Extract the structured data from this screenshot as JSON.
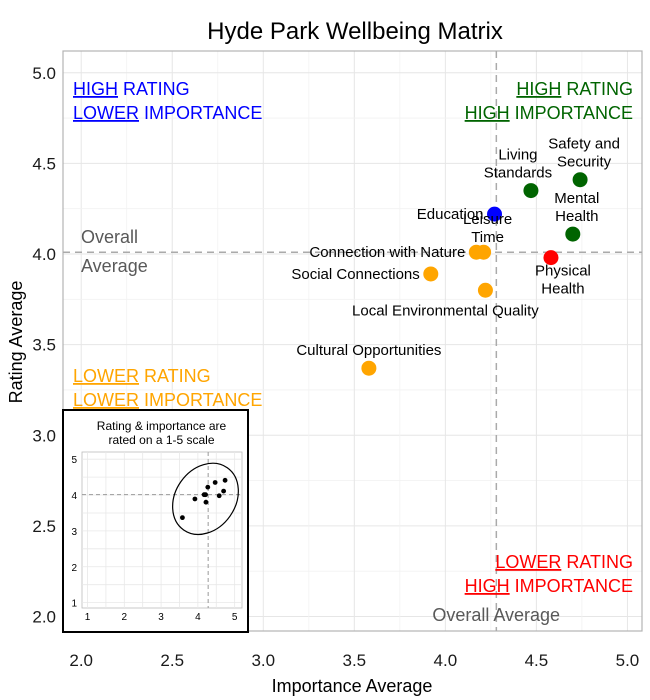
{
  "chart_data": {
    "type": "scatter",
    "title": "Hyde Park Wellbeing Matrix",
    "xlabel": "Importance Average",
    "ylabel": "Rating Average",
    "xlim": [
      1.9,
      5.08
    ],
    "ylim": [
      1.92,
      5.12
    ],
    "x_ticks": [
      "2.0",
      "2.5",
      "3.0",
      "3.5",
      "4.0",
      "4.5",
      "5.0"
    ],
    "y_ticks": [
      "2.0",
      "2.5",
      "3.0",
      "3.5",
      "4.0",
      "4.5",
      "5.0"
    ],
    "grid": true,
    "overall_average": {
      "x": 4.28,
      "y": 4.01
    },
    "overall_labels": {
      "y_line1": "Overall",
      "y_line2": "Average",
      "x_label": "Overall Average"
    },
    "colors": {
      "high_high": "#006400",
      "high_low": "#0000ff",
      "low_low": "#ffa500",
      "low_high": "#ff0000",
      "reference": "#aaaaaa",
      "overall_text": "#595959"
    },
    "quadrants": [
      {
        "id": "high_low",
        "underline": "HIGH",
        "rest1": " RATING",
        "underline2": "LOWER",
        "rest2": " IMPORTANCE",
        "color": "#0000ff"
      },
      {
        "id": "high_high",
        "underline": "HIGH",
        "rest1": " RATING",
        "underline2": "HIGH",
        "rest2": " IMPORTANCE",
        "color": "#006400"
      },
      {
        "id": "low_low",
        "underline": "LOWER",
        "rest1": " RATING",
        "underline2": "LOWER",
        "rest2": " IMPORTANCE",
        "color": "#ffa500"
      },
      {
        "id": "low_high",
        "underline": "LOWER",
        "rest1": " RATING",
        "underline2": "HIGH",
        "rest2": " IMPORTANCE",
        "color": "#ff0000"
      }
    ],
    "points": [
      {
        "name": "Safety and Security",
        "lines": [
          "Safety and",
          "Security"
        ],
        "x": 4.74,
        "y": 4.41,
        "color": "#006400",
        "align": "above-left"
      },
      {
        "name": "Living Standards",
        "lines": [
          "Living",
          "Standards"
        ],
        "x": 4.47,
        "y": 4.35,
        "color": "#006400",
        "align": "above-left"
      },
      {
        "name": "Mental Health",
        "lines": [
          "Mental",
          "Health"
        ],
        "x": 4.7,
        "y": 4.11,
        "color": "#006400",
        "align": "above-left"
      },
      {
        "name": "Education",
        "lines": [
          "Education"
        ],
        "x": 4.27,
        "y": 4.22,
        "color": "#0000ff",
        "align": "left"
      },
      {
        "name": "Leisure Time",
        "lines": [
          "Leisure",
          "Time"
        ],
        "x": 4.21,
        "y": 4.01,
        "color": "#ffa500",
        "align": "above-right"
      },
      {
        "name": "Connection with Nature",
        "lines": [
          "Connection with Nature"
        ],
        "x": 4.17,
        "y": 4.01,
        "color": "#ffa500",
        "align": "left"
      },
      {
        "name": "Physical Health",
        "lines": [
          "Physical",
          "Health"
        ],
        "x": 4.58,
        "y": 3.98,
        "color": "#ff0000",
        "align": "below-right"
      },
      {
        "name": "Social Connections",
        "lines": [
          "Social Connections"
        ],
        "x": 3.92,
        "y": 3.89,
        "color": "#ffa500",
        "align": "left"
      },
      {
        "name": "Local Environmental Quality",
        "lines": [
          "Local Environmental Quality"
        ],
        "x": 4.22,
        "y": 3.8,
        "color": "#ffa500",
        "align": "below-left"
      },
      {
        "name": "Cultural Opportunities",
        "lines": [
          "Cultural Opportunities"
        ],
        "x": 3.58,
        "y": 3.37,
        "color": "#ffa500",
        "align": "above"
      }
    ],
    "inset": {
      "title_line1": "Rating & importance are",
      "title_line2": "rated on a 1-5 scale",
      "ticks": [
        "1",
        "2",
        "3",
        "4",
        "5"
      ]
    }
  }
}
